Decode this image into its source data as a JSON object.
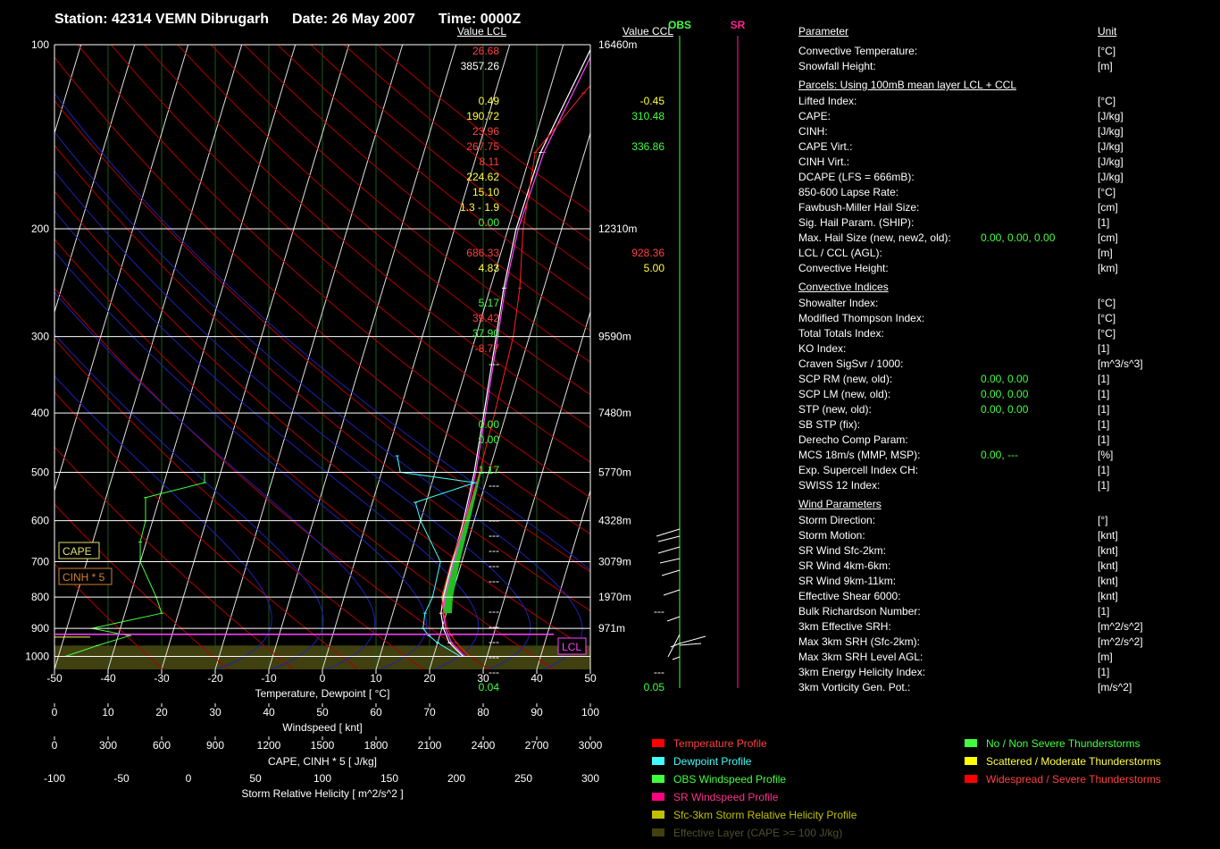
{
  "header": {
    "station": "Station: 42314 VEMN Dibrugarh",
    "date": "Date: 26 May 2007",
    "time": "Time: 0000Z"
  },
  "chart_labels": {
    "obs": "OBS",
    "sr": "SR",
    "cape_box": "CAPE",
    "cinh_box": "CINH * 5",
    "lcl_box": "LCL",
    "axis_temp": "Temperature, Dewpoint [ °C]",
    "axis_wind": "Windspeed  [ knt]",
    "axis_cape": "CAPE, CINH * 5  [ J/kg]",
    "axis_srh": "Storm Relative Helicity  [ m^2/s^2 ]"
  },
  "chart_data": {
    "type": "skew-t",
    "pressure_levels": [
      100,
      200,
      300,
      400,
      500,
      600,
      700,
      800,
      900,
      1000
    ],
    "heights": [
      {
        "p": 100,
        "label": "16460m"
      },
      {
        "p": 200,
        "label": "12310m"
      },
      {
        "p": 300,
        "label": "9590m"
      },
      {
        "p": 400,
        "label": "7480m"
      },
      {
        "p": 500,
        "label": "5770m"
      },
      {
        "p": 600,
        "label": "4328m"
      },
      {
        "p": 700,
        "label": "3079m"
      },
      {
        "p": 800,
        "label": "1970m"
      },
      {
        "p": 900,
        "label": "971m"
      }
    ],
    "temp_ticks": [
      -50,
      -40,
      -30,
      -20,
      -10,
      0,
      10,
      20,
      30,
      40,
      50
    ],
    "wind_ticks": [
      0,
      10,
      20,
      30,
      40,
      50,
      60,
      70,
      80,
      90,
      100
    ],
    "cape_ticks": [
      0,
      300,
      600,
      900,
      1200,
      1500,
      1800,
      2100,
      2400,
      2700,
      3000
    ],
    "srh_ticks": [
      -100,
      -50,
      0,
      50,
      100,
      150,
      200,
      250,
      300
    ],
    "temperature_profile": [
      [
        1000,
        26.7
      ],
      [
        950,
        23.5
      ],
      [
        925,
        22.2
      ],
      [
        900,
        21.0
      ],
      [
        850,
        19.5
      ],
      [
        800,
        18.2
      ],
      [
        700,
        18.0
      ],
      [
        600,
        18.3
      ],
      [
        500,
        18.3
      ],
      [
        400,
        17.8
      ],
      [
        300,
        17.0
      ],
      [
        250,
        15.5
      ],
      [
        200,
        12.8
      ],
      [
        150,
        10.8
      ],
      [
        120,
        16.5
      ],
      [
        100,
        22.0
      ]
    ],
    "dewpoint_profile": [
      [
        1000,
        25.0
      ],
      [
        950,
        20.0
      ],
      [
        925,
        18.0
      ],
      [
        900,
        16.5
      ],
      [
        850,
        16.0
      ],
      [
        800,
        16.5
      ],
      [
        700,
        16.0
      ],
      [
        600,
        10.0
      ],
      [
        560,
        8.0
      ],
      [
        520,
        18.0
      ],
      [
        500,
        3.5
      ],
      [
        470,
        2.0
      ]
    ],
    "parcel_profile": [
      [
        1000,
        25.5
      ],
      [
        950,
        22.2
      ],
      [
        900,
        20.3
      ],
      [
        850,
        19.0
      ],
      [
        800,
        18.5
      ],
      [
        700,
        18.2
      ],
      [
        600,
        18.0
      ],
      [
        500,
        17.3
      ],
      [
        400,
        15.8
      ],
      [
        300,
        13.8
      ],
      [
        250,
        12.5
      ],
      [
        200,
        11.5
      ],
      [
        150,
        11.8
      ],
      [
        100,
        15.5
      ]
    ],
    "parcel_virtual_profile": [
      [
        1000,
        25.8
      ],
      [
        950,
        22.6
      ],
      [
        900,
        20.7
      ],
      [
        850,
        19.4
      ],
      [
        800,
        18.8
      ],
      [
        700,
        18.5
      ],
      [
        600,
        18.3
      ],
      [
        500,
        17.6
      ],
      [
        400,
        16.1
      ],
      [
        300,
        14.1
      ],
      [
        250,
        12.8
      ],
      [
        200,
        11.9
      ],
      [
        150,
        12.4
      ],
      [
        100,
        16.2
      ]
    ],
    "obs_windspeed": [
      [
        1000,
        2
      ],
      [
        960,
        8
      ],
      [
        925,
        14
      ],
      [
        900,
        7
      ],
      [
        850,
        20
      ],
      [
        800,
        19
      ],
      [
        700,
        16
      ],
      [
        650,
        16
      ],
      [
        600,
        17
      ],
      [
        550,
        17
      ],
      [
        520,
        28
      ],
      [
        500,
        28
      ]
    ],
    "series_names": [
      "Temperature Profile",
      "Dewpoint Profile",
      "OBS Windspeed Profile",
      "SR Windspeed Profile",
      "Sfc-3km Storm Relative Helicity Profile",
      "Effective Layer (CAPE >= 100 J/kg)"
    ]
  },
  "params": {
    "header": {
      "label": "Parameter",
      "v1": "Value LCL",
      "v2": "Value CCL",
      "unit": "Unit"
    },
    "rows": [
      {
        "label": "Convective Temperature:",
        "v1": "26.68",
        "c1": "#ff4040",
        "v2": "",
        "c2": "#fff",
        "unit": "[°C]"
      },
      {
        "label": "Snowfall Height:",
        "v1": "3857.26",
        "c1": "#ffffff",
        "v2": "",
        "c2": "#fff",
        "unit": "[m]"
      },
      {
        "label": "Parcels: Using 100mB mean layer LCL + CCL",
        "header": true
      },
      {
        "label": "Lifted Index:",
        "v1": "0.49",
        "c1": "#ffff40",
        "v2": "-0.45",
        "c2": "#ffff40",
        "unit": "[°C]"
      },
      {
        "label": "CAPE:",
        "v1": "190.72",
        "c1": "#ffff40",
        "v2": "310.48",
        "c2": "#40ff40",
        "unit": "[J/kg]"
      },
      {
        "label": "CINH:",
        "v1": "23.96",
        "c1": "#ff4040",
        "v2": "",
        "c2": "#fff",
        "unit": "[J/kg]"
      },
      {
        "label": "CAPE Virt.:",
        "v1": "267.75",
        "c1": "#ff4040",
        "v2": "336.86",
        "c2": "#40ff40",
        "unit": "[J/kg]"
      },
      {
        "label": "CINH Virt.:",
        "v1": "8.11",
        "c1": "#ff4040",
        "v2": "",
        "c2": "#fff",
        "unit": "[J/kg]"
      },
      {
        "label": "DCAPE (LFS = 666mB):",
        "v1": "224.62",
        "c1": "#ffff40",
        "v2": "",
        "c2": "#fff",
        "unit": "[J/kg]"
      },
      {
        "label": "850-600 Lapse Rate:",
        "v1": "15.10",
        "c1": "#ffff40",
        "v2": "",
        "c2": "#fff",
        "unit": "[°C]"
      },
      {
        "label": "Fawbush-Miller Hail Size:",
        "v1": "1.3 - 1.9",
        "c1": "#ffff40",
        "v2": "",
        "c2": "#fff",
        "unit": "[cm]"
      },
      {
        "label": "Sig. Hail Param. (SHIP):",
        "v1": "0.00",
        "c1": "#40ff40",
        "v2": "",
        "c2": "#fff",
        "unit": "[1]"
      },
      {
        "label": "Max. Hail Size (new, new2, old):",
        "triple": "0.00,  0.00,  0.00",
        "c1": "#40ff40",
        "unit": "[cm]"
      },
      {
        "label": "LCL / CCL (AGL):",
        "v1": "686.33",
        "c1": "#ff4040",
        "v2": "928.36",
        "c2": "#ff4040",
        "unit": "[m]"
      },
      {
        "label": "Convective Height:",
        "v1": "4.83",
        "c1": "#ffff40",
        "v2": "5.00",
        "c2": "#ffff40",
        "unit": "[km]"
      },
      {
        "label": "Convective Indices",
        "header": true
      },
      {
        "label": "Showalter Index:",
        "v1": "5.17",
        "c1": "#40ff40",
        "v2": "",
        "c2": "#fff",
        "unit": "[°C]"
      },
      {
        "label": "Modified Thompson Index:",
        "v1": "39.42",
        "c1": "#ff4040",
        "v2": "",
        "c2": "#fff",
        "unit": "[°C]"
      },
      {
        "label": "Total Totals Index:",
        "v1": "37.90",
        "c1": "#40ff40",
        "v2": "",
        "c2": "#fff",
        "unit": "[°C]"
      },
      {
        "label": "KO Index:",
        "v1": "-8.77",
        "c1": "#ff4040",
        "v2": "",
        "c2": "#fff",
        "unit": "[1]"
      },
      {
        "label": "Craven SigSvr / 1000:",
        "v1": "---",
        "c1": "#ffffff",
        "v2": "",
        "c2": "#fff",
        "unit": "[m^3/s^3]"
      },
      {
        "label": "SCP RM (new, old):",
        "triple": "0.00,  0.00",
        "c1": "#40ff40",
        "unit": "[1]"
      },
      {
        "label": "SCP LM (new, old):",
        "triple": "0.00,  0.00",
        "c1": "#40ff40",
        "unit": "[1]"
      },
      {
        "label": "STP (new, old):",
        "triple": "0.00,  0.00",
        "c1": "#40ff40",
        "unit": "[1]"
      },
      {
        "label": "SB STP (fix):",
        "v1": "0.00",
        "c1": "#40ff40",
        "v2": "",
        "c2": "#fff",
        "unit": "[1]"
      },
      {
        "label": "Derecho Comp Param:",
        "v1": "0.00",
        "c1": "#40ff40",
        "v2": "",
        "c2": "#fff",
        "unit": "[1]"
      },
      {
        "label": "MCS 18m/s (MMP, MSP):",
        "triple": "0.00,  ---",
        "c1": "#40ff40",
        "unit": "[%]"
      },
      {
        "label": "Exp. Supercell Index CH:",
        "v1": "1.17",
        "c1": "#40ff40",
        "v2": "",
        "c2": "#fff",
        "unit": "[1]"
      },
      {
        "label": "SWISS 12 Index:",
        "v1": "---",
        "c1": "#ffffff",
        "v2": "",
        "c2": "#fff",
        "unit": "[1]"
      },
      {
        "label": "Wind Parameters",
        "header": true
      },
      {
        "label": "Storm Direction:",
        "v1": "---",
        "c1": "#ffffff",
        "v2": "",
        "c2": "#fff",
        "unit": "[°]"
      },
      {
        "label": "Storm Motion:",
        "v1": "---",
        "c1": "#ffffff",
        "v2": "",
        "c2": "#fff",
        "unit": "[knt]"
      },
      {
        "label": "SR Wind Sfc-2km:",
        "v1": "---",
        "c1": "#ffffff",
        "v2": "",
        "c2": "#fff",
        "unit": "[knt]"
      },
      {
        "label": "SR Wind 4km-6km:",
        "v1": "---",
        "c1": "#ffffff",
        "v2": "",
        "c2": "#fff",
        "unit": "[knt]"
      },
      {
        "label": "SR Wind 9km-11km:",
        "v1": "---",
        "c1": "#ffffff",
        "v2": "",
        "c2": "#fff",
        "unit": "[knt]"
      },
      {
        "label": "Effective Shear 6000:",
        "v1": "---",
        "c1": "#ffffff",
        "v2": "",
        "c2": "#fff",
        "unit": "[knt]"
      },
      {
        "label": "Bulk Richardson Number:",
        "v1": "---",
        "c1": "#ffffff",
        "v2": "---",
        "c2": "#ffffff",
        "unit": "[1]"
      },
      {
        "label": "3km Effective SRH:",
        "v1": "---",
        "c1": "#ffffff",
        "v2": "",
        "c2": "#fff",
        "unit": "[m^2/s^2]"
      },
      {
        "label": "Max 3km SRH (Sfc-2km):",
        "v1": "---",
        "c1": "#ffffff",
        "v2": "",
        "c2": "#fff",
        "unit": "[m^2/s^2]"
      },
      {
        "label": "Max 3km SRH Level AGL:",
        "v1": "---",
        "c1": "#ffffff",
        "v2": "",
        "c2": "#fff",
        "unit": "[m]"
      },
      {
        "label": "3km Energy Helicity Index:",
        "v1": "---",
        "c1": "#ffffff",
        "v2": "---",
        "c2": "#ffffff",
        "unit": "[1]"
      },
      {
        "label": "3km Vorticity Gen. Pot.:",
        "v1": "0.04",
        "c1": "#40ff40",
        "v2": "0.05",
        "c2": "#40ff40",
        "unit": "[m/s^2]"
      }
    ]
  },
  "legend_left": [
    {
      "label": "Temperature Profile",
      "color": "#ff0000",
      "text_color": "#ff4040"
    },
    {
      "label": "Dewpoint Profile",
      "color": "#40ffff",
      "text_color": "#40ffff"
    },
    {
      "label": "OBS Windspeed Profile",
      "color": "#40ff40",
      "text_color": "#40ff40"
    },
    {
      "label": "SR Windspeed Profile",
      "color": "#ff0080",
      "text_color": "#ff3090"
    },
    {
      "label": "Sfc-3km Storm Relative Helicity Profile",
      "color": "#c0c000",
      "text_color": "#c0c000"
    },
    {
      "label": "Effective Layer (CAPE >= 100 J/kg)",
      "color": "#404010",
      "text_color": "#505030"
    }
  ],
  "legend_right": [
    {
      "label": "No / Non Severe Thunderstorms",
      "color": "#40ff40",
      "text_color": "#40ff40"
    },
    {
      "label": "Scattered / Moderate Thunderstorms",
      "color": "#ffff00",
      "text_color": "#ffff40"
    },
    {
      "label": "Widespread / Severe Thunderstorms",
      "color": "#ff0000",
      "text_color": "#ff4040"
    }
  ]
}
